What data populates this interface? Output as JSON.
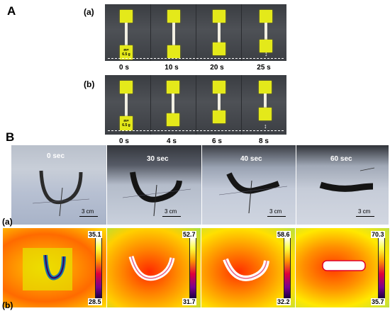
{
  "panel_a": {
    "letter": "A",
    "row_a": {
      "label": "(a)",
      "mass_label_line1": "m=",
      "mass_label_line2": "6.5 g",
      "times": [
        "0 s",
        "10 s",
        "20 s",
        "25 s"
      ]
    },
    "row_b": {
      "label": "(b)",
      "mass_label_line1": "m=",
      "mass_label_line2": "6.5 g",
      "times": [
        "0 s",
        "4 s",
        "6 s",
        "8 s"
      ]
    }
  },
  "panel_b": {
    "letter": "B",
    "row_a_label": "(a)",
    "row_b_label": "(b)",
    "photos": [
      {
        "time": "0 sec",
        "scale": "3 cm"
      },
      {
        "time": "30 sec",
        "scale": "3 cm"
      },
      {
        "time": "40 sec",
        "scale": "3 cm"
      },
      {
        "time": "60 sec",
        "scale": "3 cm"
      }
    ],
    "thermal": [
      {
        "max": "35.1",
        "min": "28.5"
      },
      {
        "max": "52.7",
        "min": "31.7"
      },
      {
        "max": "58.6",
        "min": "32.2"
      },
      {
        "max": "70.3",
        "min": "35.7"
      }
    ]
  }
}
